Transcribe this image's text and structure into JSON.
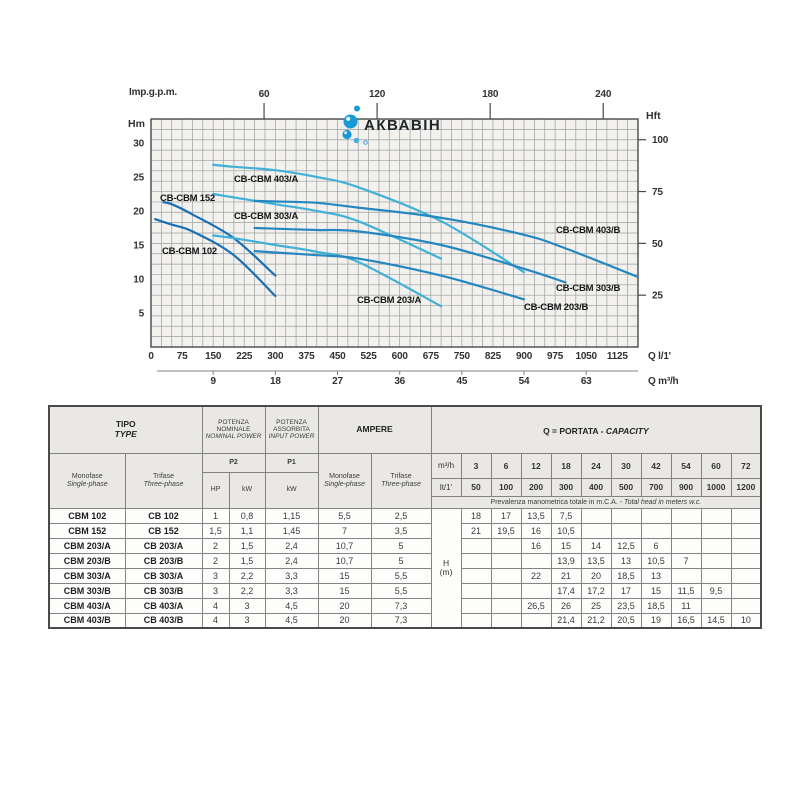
{
  "watermark": {
    "text": "АКВАВІН"
  },
  "chart_data": {
    "type": "line",
    "title": "",
    "x_axis_bottom": {
      "label": "Q l/1'",
      "ticks": [
        0,
        75,
        150,
        225,
        300,
        375,
        450,
        525,
        600,
        675,
        750,
        825,
        900,
        975,
        1050,
        1125
      ],
      "max": 1175
    },
    "x_axis_m3h": {
      "label": "Q m³/h",
      "ticks": [
        9,
        18,
        27,
        36,
        45,
        54,
        63
      ]
    },
    "x_axis_top": {
      "label": "Imp.g.p.m.",
      "ticks": [
        60,
        120,
        180,
        240
      ]
    },
    "y_axis_left": {
      "label": "Hm",
      "ticks": [
        5,
        10,
        15,
        20,
        25,
        30
      ],
      "max_m": 33.5
    },
    "y_axis_right": {
      "label": "Hft",
      "ticks": [
        25,
        50,
        75,
        100
      ],
      "max_ft": 110
    },
    "grid": {
      "x_step_lt": 25,
      "y_step_ft": 5,
      "grid_on": true
    },
    "series": [
      {
        "name": "CB-CBM 102",
        "color": "#1a6fb5",
        "points": [
          [
            10,
            18.8
          ],
          [
            50,
            18
          ],
          [
            100,
            17
          ],
          [
            200,
            13.5
          ],
          [
            300,
            7.5
          ]
        ],
        "label_at": [
          162,
          254
        ]
      },
      {
        "name": "CB-CBM 152",
        "color": "#1a6fb5",
        "points": [
          [
            30,
            21.3
          ],
          [
            50,
            21
          ],
          [
            100,
            19.5
          ],
          [
            200,
            16
          ],
          [
            300,
            10.5
          ]
        ],
        "label_at": [
          160,
          201
        ]
      },
      {
        "name": "CB-CBM 203/A",
        "color": "#41b1d8",
        "points": [
          [
            150,
            16.4
          ],
          [
            200,
            16
          ],
          [
            300,
            15
          ],
          [
            400,
            14
          ],
          [
            500,
            12.5
          ],
          [
            700,
            6
          ]
        ],
        "label_at": [
          357,
          303
        ]
      },
      {
        "name": "CB-CBM 303/A",
        "color": "#41b1d8",
        "points": [
          [
            150,
            22.5
          ],
          [
            200,
            22
          ],
          [
            300,
            21
          ],
          [
            400,
            20
          ],
          [
            500,
            18.5
          ],
          [
            700,
            13
          ]
        ],
        "label_at": [
          234,
          219
        ]
      },
      {
        "name": "CB-CBM 403/A",
        "color": "#41b1d8",
        "points": [
          [
            150,
            26.8
          ],
          [
            200,
            26.5
          ],
          [
            300,
            26
          ],
          [
            400,
            25
          ],
          [
            500,
            23.5
          ],
          [
            700,
            18.5
          ],
          [
            900,
            11
          ]
        ],
        "label_at": [
          234,
          182
        ]
      },
      {
        "name": "CB-CBM 203/B",
        "color": "#2487c0",
        "points": [
          [
            250,
            14.1
          ],
          [
            300,
            13.9
          ],
          [
            400,
            13.5
          ],
          [
            500,
            13
          ],
          [
            700,
            10.5
          ],
          [
            900,
            7
          ]
        ],
        "label_at": [
          524,
          310
        ]
      },
      {
        "name": "CB-CBM 303/B",
        "color": "#2487c0",
        "points": [
          [
            250,
            17.5
          ],
          [
            300,
            17.4
          ],
          [
            400,
            17.2
          ],
          [
            500,
            17
          ],
          [
            700,
            15
          ],
          [
            900,
            11.5
          ],
          [
            1000,
            9.5
          ]
        ],
        "label_at": [
          556,
          291
        ]
      },
      {
        "name": "CB-CBM 403/B",
        "color": "#2487c0",
        "points": [
          [
            250,
            21.5
          ],
          [
            300,
            21.4
          ],
          [
            400,
            21.2
          ],
          [
            500,
            20.5
          ],
          [
            700,
            19
          ],
          [
            900,
            16.5
          ],
          [
            1000,
            14.5
          ],
          [
            1175,
            10.3
          ]
        ],
        "label_at": [
          556,
          233
        ]
      }
    ]
  },
  "table": {
    "tipo_it": "TIPO",
    "tipo_en": "TYPE",
    "potenza_nominale_it": "POTENZA NOMINALE",
    "potenza_nominale_en": "NOMINAL POWER",
    "potenza_assorbita_it": "POTENZA ASSORBITA",
    "potenza_assorbita_en": "INPUT POWER",
    "ampere": "AMPERE",
    "portata": "Q = PORTATA - ",
    "portata_en": "CAPACITY",
    "monofase_it": "Monofase",
    "monofase_en": "Single-phase",
    "trifase_it": "Trifase",
    "trifase_en": "Three-phase",
    "p2": "P2",
    "p1": "P1",
    "hp": "HP",
    "kw": "kW",
    "m3h_label": "m³/h",
    "lt_label": "lt/1'",
    "h_label_1": "H",
    "h_label_2": "(m)",
    "note_it": "Prevalenza manometrica totale in m.C.A.",
    "note_en": " - Total head in meters w.c.",
    "capacity_m3h": [
      "3",
      "6",
      "12",
      "18",
      "24",
      "30",
      "42",
      "54",
      "60",
      "72"
    ],
    "capacity_lt": [
      "50",
      "100",
      "200",
      "300",
      "400",
      "500",
      "700",
      "900",
      "1000",
      "1200"
    ],
    "rows": [
      {
        "monofase": "CBM 102",
        "trifase": "CB 102",
        "hp": "1",
        "kw_p2": "0,8",
        "kw_p1": "1,15",
        "amp_mono": "5,5",
        "amp_tri": "2,5",
        "head": [
          "18",
          "17",
          "13,5",
          "7,5",
          "",
          "",
          "",
          "",
          "",
          ""
        ]
      },
      {
        "monofase": "CBM 152",
        "trifase": "CB 152",
        "hp": "1,5",
        "kw_p2": "1,1",
        "kw_p1": "1,45",
        "amp_mono": "7",
        "amp_tri": "3,5",
        "head": [
          "21",
          "19,5",
          "16",
          "10,5",
          "",
          "",
          "",
          "",
          "",
          ""
        ]
      },
      {
        "monofase": "CBM 203/A",
        "trifase": "CB 203/A",
        "hp": "2",
        "kw_p2": "1,5",
        "kw_p1": "2,4",
        "amp_mono": "10,7",
        "amp_tri": "5",
        "head": [
          "",
          "",
          "16",
          "15",
          "14",
          "12,5",
          "6",
          "",
          "",
          ""
        ]
      },
      {
        "monofase": "CBM 203/B",
        "trifase": "CB 203/B",
        "hp": "2",
        "kw_p2": "1,5",
        "kw_p1": "2,4",
        "amp_mono": "10,7",
        "amp_tri": "5",
        "head": [
          "",
          "",
          "",
          "13,9",
          "13,5",
          "13",
          "10,5",
          "7",
          "",
          ""
        ]
      },
      {
        "monofase": "CBM 303/A",
        "trifase": "CB 303/A",
        "hp": "3",
        "kw_p2": "2,2",
        "kw_p1": "3,3",
        "amp_mono": "15",
        "amp_tri": "5,5",
        "head": [
          "",
          "",
          "22",
          "21",
          "20",
          "18,5",
          "13",
          "",
          "",
          ""
        ]
      },
      {
        "monofase": "CBM 303/B",
        "trifase": "CB 303/B",
        "hp": "3",
        "kw_p2": "2,2",
        "kw_p1": "3,3",
        "amp_mono": "15",
        "amp_tri": "5,5",
        "head": [
          "",
          "",
          "",
          "17,4",
          "17,2",
          "17",
          "15",
          "11,5",
          "9,5",
          ""
        ]
      },
      {
        "monofase": "CBM 403/A",
        "trifase": "CB 403/A",
        "hp": "4",
        "kw_p2": "3",
        "kw_p1": "4,5",
        "amp_mono": "20",
        "amp_tri": "7,3",
        "head": [
          "",
          "",
          "26,5",
          "26",
          "25",
          "23,5",
          "18,5",
          "11",
          "",
          ""
        ]
      },
      {
        "monofase": "CBM 403/B",
        "trifase": "CB 403/B",
        "hp": "4",
        "kw_p2": "3",
        "kw_p1": "4,5",
        "amp_mono": "20",
        "amp_tri": "7,3",
        "head": [
          "",
          "",
          "",
          "21,4",
          "21,2",
          "20,5",
          "19",
          "16,5",
          "14,5",
          "10"
        ]
      }
    ]
  }
}
